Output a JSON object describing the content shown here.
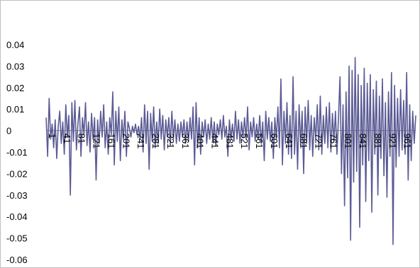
{
  "chart_data": {
    "type": "line",
    "title": "",
    "xlabel": "",
    "ylabel": "",
    "x_start": 1,
    "x_end": 1000,
    "xtick_labels": [
      "1",
      "41",
      "81",
      "121",
      "161",
      "201",
      "241",
      "281",
      "321",
      "361",
      "401",
      "441",
      "481",
      "521",
      "561",
      "601",
      "641",
      "681",
      "721",
      "761",
      "801",
      "841",
      "881",
      "921",
      "961"
    ],
    "ylim": [
      -0.06,
      0.04
    ],
    "ytick_labels": [
      "0.04",
      "0.03",
      "0.02",
      "0.01",
      "0",
      "-0.01",
      "-0.02",
      "-0.03",
      "-0.04",
      "-0.05",
      "-0.06"
    ],
    "grid": false,
    "legend": "none",
    "series": [
      {
        "color": "#5b5b95",
        "values": [
          0.006,
          -0.012,
          0.015,
          -0.004,
          0.003,
          -0.008,
          0.005,
          -0.013,
          0.002,
          0.009,
          -0.006,
          0.004,
          -0.011,
          0.012,
          -0.003,
          0.007,
          -0.03,
          0.013,
          -0.005,
          0.014,
          -0.009,
          0.003,
          0.011,
          -0.012,
          0.006,
          -0.002,
          0.013,
          -0.007,
          0.004,
          -0.01,
          0.008,
          -0.004,
          0.006,
          -0.023,
          0.005,
          -0.006,
          0.009,
          -0.003,
          0.012,
          -0.008,
          0.004,
          -0.011,
          0.006,
          -0.002,
          0.018,
          -0.016,
          0.009,
          -0.005,
          0.011,
          -0.014,
          0.005,
          -0.004,
          0.009,
          -0.012,
          0.004,
          0.001,
          -0.003,
          0.002,
          -0.001,
          0.003,
          -0.002,
          0.002,
          -0.004,
          0.006,
          -0.01,
          0.012,
          -0.006,
          0.009,
          -0.018,
          0.008,
          -0.005,
          0.011,
          -0.008,
          0.004,
          -0.006,
          0.01,
          -0.004,
          0.007,
          -0.009,
          0.005,
          -0.003,
          0.006,
          -0.007,
          0.009,
          -0.004,
          0.005,
          -0.006,
          0.003,
          -0.005,
          0.004,
          -0.003,
          0.005,
          -0.006,
          0.004,
          -0.005,
          0.006,
          -0.004,
          0.011,
          -0.016,
          0.013,
          -0.008,
          0.006,
          -0.011,
          0.004,
          -0.003,
          0.005,
          -0.006,
          0.003,
          -0.004,
          0.006,
          -0.005,
          0.004,
          -0.007,
          0.003,
          -0.002,
          0.005,
          -0.004,
          0.007,
          -0.003,
          0.002,
          -0.012,
          0.005,
          -0.004,
          0.003,
          -0.005,
          0.009,
          -0.004,
          0.005,
          -0.006,
          0.004,
          -0.003,
          0.006,
          -0.004,
          0.011,
          -0.009,
          0.004,
          -0.003,
          0.006,
          -0.005,
          0.003,
          -0.004,
          0.007,
          -0.006,
          0.004,
          -0.014,
          0.009,
          -0.004,
          0.006,
          -0.005,
          0.004,
          -0.013,
          0.006,
          -0.004,
          0.011,
          -0.008,
          0.024,
          -0.016,
          0.009,
          -0.006,
          0.013,
          -0.011,
          0.007,
          -0.013,
          0.025,
          -0.011,
          0.009,
          -0.018,
          0.012,
          -0.007,
          0.009,
          -0.02,
          0.011,
          -0.006,
          0.014,
          -0.009,
          0.007,
          -0.012,
          0.006,
          -0.004,
          0.012,
          -0.009,
          0.016,
          -0.011,
          0.007,
          -0.006,
          0.011,
          -0.008,
          0.013,
          -0.01,
          0.008,
          -0.005,
          0.009,
          -0.011,
          0.006,
          0.025,
          -0.02,
          0.012,
          -0.035,
          0.018,
          -0.022,
          0.03,
          -0.051,
          0.028,
          -0.024,
          0.034,
          -0.019,
          0.026,
          -0.045,
          0.021,
          -0.016,
          0.029,
          -0.033,
          0.022,
          -0.014,
          0.026,
          -0.038,
          0.019,
          -0.011,
          0.023,
          -0.03,
          0.016,
          -0.013,
          0.024,
          -0.021,
          0.013,
          -0.031,
          0.018,
          -0.012,
          0.027,
          -0.053,
          0.021,
          -0.017,
          0.015,
          -0.012,
          0.019,
          -0.009,
          0.014,
          -0.011,
          0.027,
          -0.023,
          0.012,
          -0.014,
          0.009,
          -0.006,
          0.007
        ]
      }
    ]
  }
}
